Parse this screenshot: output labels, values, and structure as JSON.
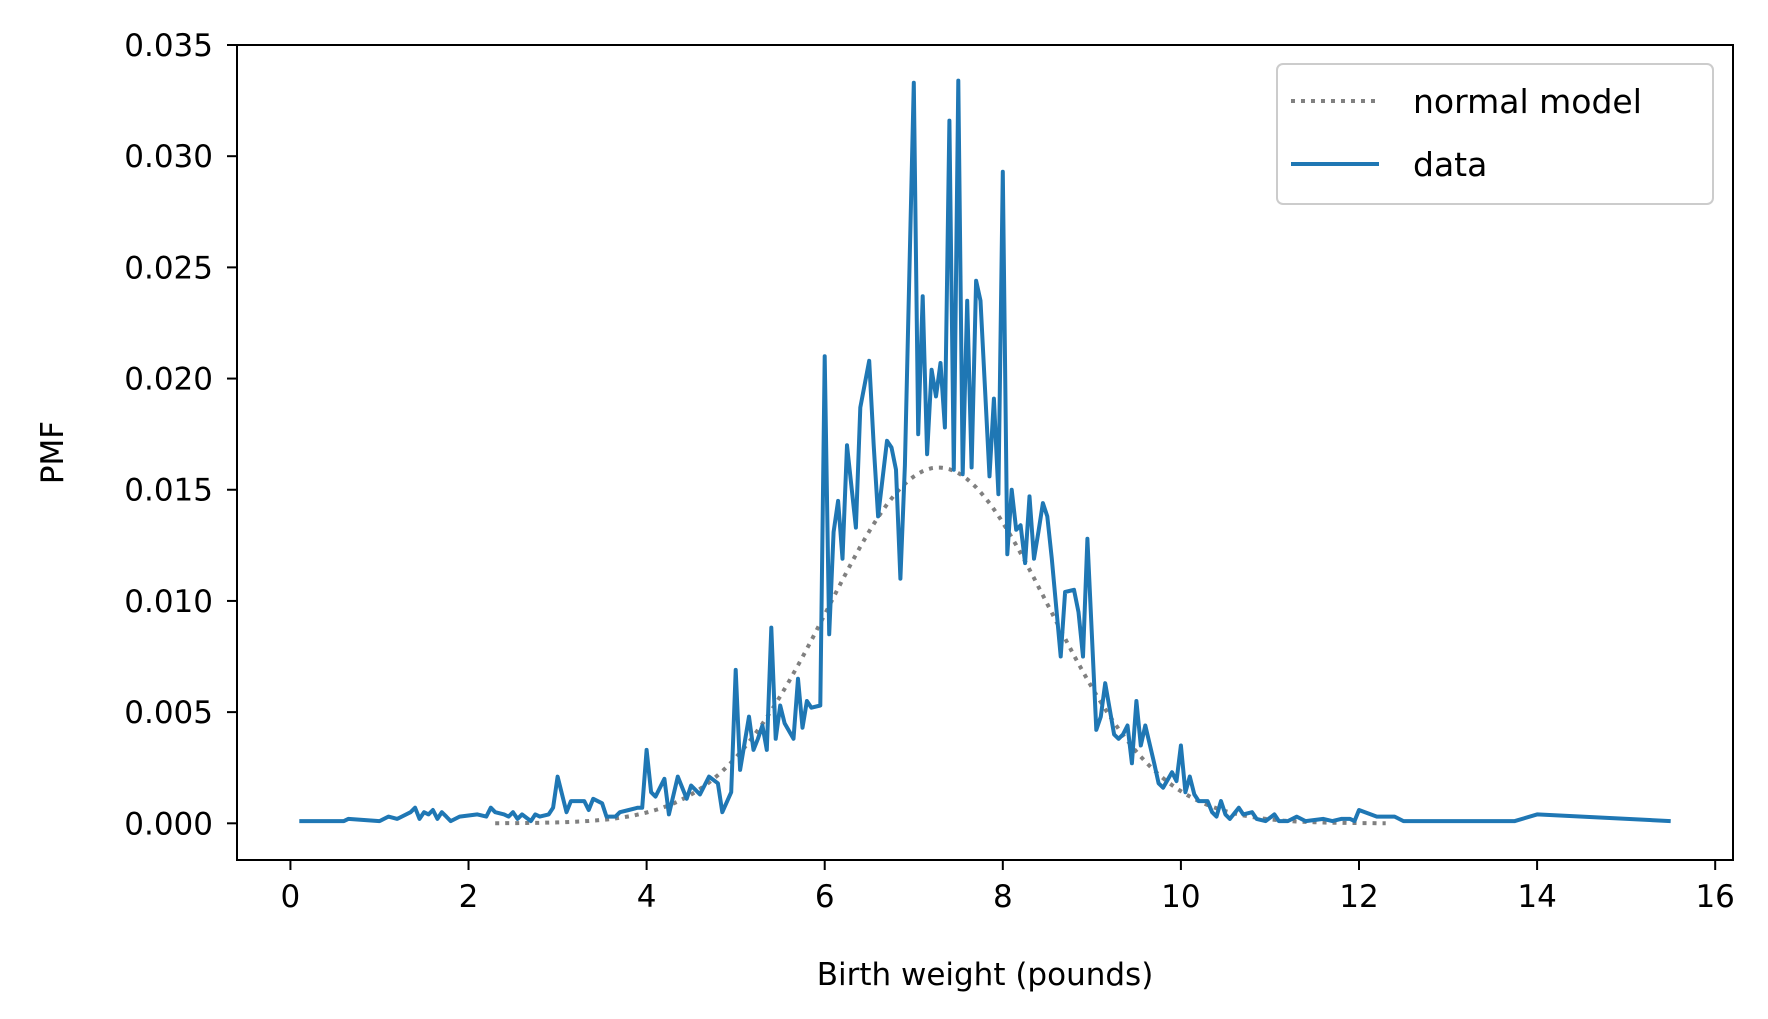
{
  "chart_data": {
    "type": "line",
    "title": "",
    "xlabel": "Birth weight (pounds)",
    "ylabel": "PMF",
    "xlim": [
      -0.6,
      16.2
    ],
    "ylim": [
      -0.00165,
      0.035
    ],
    "xticks": [
      0,
      2,
      4,
      6,
      8,
      10,
      12,
      14,
      16
    ],
    "xtick_labels": [
      "0",
      "2",
      "4",
      "6",
      "8",
      "10",
      "12",
      "14",
      "16"
    ],
    "yticks": [
      0.0,
      0.005,
      0.01,
      0.015,
      0.02,
      0.025,
      0.03,
      0.035
    ],
    "ytick_labels": [
      "0.000",
      "0.005",
      "0.010",
      "0.015",
      "0.020",
      "0.025",
      "0.030",
      "0.035"
    ],
    "grid": false,
    "legend_position": "top-right",
    "series": [
      {
        "name": "normal model",
        "style": "dotted",
        "color": "#808080",
        "kind": "normal-curve",
        "mean": 7.28,
        "sd": 1.24,
        "peak": 0.016,
        "x_range": [
          2.3,
          12.3
        ]
      },
      {
        "name": "data",
        "style": "solid",
        "color": "#1f77b4",
        "points": [
          [
            0.1,
            0.0001
          ],
          [
            0.6,
            0.0001
          ],
          [
            0.65,
            0.0002
          ],
          [
            1.0,
            0.0001
          ],
          [
            1.1,
            0.0003
          ],
          [
            1.2,
            0.0002
          ],
          [
            1.35,
            0.0005
          ],
          [
            1.4,
            0.0007
          ],
          [
            1.45,
            0.0002
          ],
          [
            1.5,
            0.0005
          ],
          [
            1.55,
            0.0004
          ],
          [
            1.6,
            0.0006
          ],
          [
            1.65,
            0.0002
          ],
          [
            1.7,
            0.0005
          ],
          [
            1.75,
            0.0003
          ],
          [
            1.8,
            0.0001
          ],
          [
            1.9,
            0.0003
          ],
          [
            2.1,
            0.0004
          ],
          [
            2.2,
            0.0003
          ],
          [
            2.25,
            0.0007
          ],
          [
            2.3,
            0.0005
          ],
          [
            2.4,
            0.0004
          ],
          [
            2.45,
            0.0003
          ],
          [
            2.5,
            0.0005
          ],
          [
            2.55,
            0.0002
          ],
          [
            2.6,
            0.0004
          ],
          [
            2.7,
            0.0001
          ],
          [
            2.75,
            0.0004
          ],
          [
            2.8,
            0.0003
          ],
          [
            2.9,
            0.0004
          ],
          [
            2.95,
            0.0007
          ],
          [
            3.0,
            0.0021
          ],
          [
            3.1,
            0.0005
          ],
          [
            3.15,
            0.001
          ],
          [
            3.3,
            0.001
          ],
          [
            3.35,
            0.0006
          ],
          [
            3.4,
            0.0011
          ],
          [
            3.5,
            0.0009
          ],
          [
            3.55,
            0.0003
          ],
          [
            3.65,
            0.0003
          ],
          [
            3.7,
            0.0005
          ],
          [
            3.8,
            0.0006
          ],
          [
            3.9,
            0.0007
          ],
          [
            3.95,
            0.0007
          ],
          [
            4.0,
            0.0033
          ],
          [
            4.05,
            0.0014
          ],
          [
            4.1,
            0.0012
          ],
          [
            4.2,
            0.002
          ],
          [
            4.25,
            0.0004
          ],
          [
            4.35,
            0.0021
          ],
          [
            4.45,
            0.0011
          ],
          [
            4.5,
            0.0017
          ],
          [
            4.6,
            0.0013
          ],
          [
            4.7,
            0.0021
          ],
          [
            4.8,
            0.0018
          ],
          [
            4.85,
            0.0005
          ],
          [
            4.95,
            0.0014
          ],
          [
            5.0,
            0.0069
          ],
          [
            5.05,
            0.0024
          ],
          [
            5.15,
            0.0048
          ],
          [
            5.2,
            0.0033
          ],
          [
            5.25,
            0.0038
          ],
          [
            5.3,
            0.0044
          ],
          [
            5.35,
            0.0033
          ],
          [
            5.4,
            0.0088
          ],
          [
            5.45,
            0.0038
          ],
          [
            5.5,
            0.0053
          ],
          [
            5.55,
            0.0045
          ],
          [
            5.65,
            0.0038
          ],
          [
            5.7,
            0.0065
          ],
          [
            5.75,
            0.0043
          ],
          [
            5.8,
            0.0055
          ],
          [
            5.85,
            0.0052
          ],
          [
            5.95,
            0.0053
          ],
          [
            6.0,
            0.021
          ],
          [
            6.05,
            0.0085
          ],
          [
            6.1,
            0.0131
          ],
          [
            6.15,
            0.0145
          ],
          [
            6.2,
            0.0119
          ],
          [
            6.25,
            0.017
          ],
          [
            6.35,
            0.0133
          ],
          [
            6.4,
            0.0187
          ],
          [
            6.5,
            0.0208
          ],
          [
            6.55,
            0.017
          ],
          [
            6.6,
            0.0138
          ],
          [
            6.7,
            0.0172
          ],
          [
            6.75,
            0.0169
          ],
          [
            6.8,
            0.0159
          ],
          [
            6.85,
            0.011
          ],
          [
            6.9,
            0.0161
          ],
          [
            7.0,
            0.0333
          ],
          [
            7.05,
            0.0175
          ],
          [
            7.1,
            0.0237
          ],
          [
            7.15,
            0.0166
          ],
          [
            7.2,
            0.0204
          ],
          [
            7.25,
            0.0192
          ],
          [
            7.3,
            0.0207
          ],
          [
            7.35,
            0.0178
          ],
          [
            7.4,
            0.0316
          ],
          [
            7.45,
            0.0159
          ],
          [
            7.5,
            0.0334
          ],
          [
            7.55,
            0.0157
          ],
          [
            7.6,
            0.0235
          ],
          [
            7.65,
            0.016
          ],
          [
            7.7,
            0.0244
          ],
          [
            7.75,
            0.0235
          ],
          [
            7.85,
            0.0156
          ],
          [
            7.9,
            0.0191
          ],
          [
            7.95,
            0.0148
          ],
          [
            8.0,
            0.0293
          ],
          [
            8.05,
            0.0121
          ],
          [
            8.1,
            0.015
          ],
          [
            8.15,
            0.0132
          ],
          [
            8.2,
            0.0134
          ],
          [
            8.25,
            0.0117
          ],
          [
            8.3,
            0.0147
          ],
          [
            8.35,
            0.0119
          ],
          [
            8.4,
            0.0131
          ],
          [
            8.45,
            0.0144
          ],
          [
            8.5,
            0.0138
          ],
          [
            8.55,
            0.0119
          ],
          [
            8.65,
            0.0075
          ],
          [
            8.7,
            0.0104
          ],
          [
            8.8,
            0.0105
          ],
          [
            8.85,
            0.0095
          ],
          [
            8.9,
            0.0075
          ],
          [
            8.95,
            0.0128
          ],
          [
            9.05,
            0.0042
          ],
          [
            9.1,
            0.0048
          ],
          [
            9.15,
            0.0063
          ],
          [
            9.25,
            0.004
          ],
          [
            9.3,
            0.0038
          ],
          [
            9.35,
            0.004
          ],
          [
            9.4,
            0.0044
          ],
          [
            9.45,
            0.0027
          ],
          [
            9.5,
            0.0055
          ],
          [
            9.55,
            0.0035
          ],
          [
            9.6,
            0.0044
          ],
          [
            9.7,
            0.0027
          ],
          [
            9.75,
            0.0018
          ],
          [
            9.8,
            0.0016
          ],
          [
            9.9,
            0.0023
          ],
          [
            9.95,
            0.0019
          ],
          [
            10.0,
            0.0035
          ],
          [
            10.05,
            0.0014
          ],
          [
            10.1,
            0.0021
          ],
          [
            10.15,
            0.0013
          ],
          [
            10.2,
            0.001
          ],
          [
            10.3,
            0.001
          ],
          [
            10.35,
            0.0005
          ],
          [
            10.4,
            0.0003
          ],
          [
            10.45,
            0.001
          ],
          [
            10.5,
            0.0004
          ],
          [
            10.55,
            0.0002
          ],
          [
            10.65,
            0.0007
          ],
          [
            10.7,
            0.0004
          ],
          [
            10.8,
            0.0005
          ],
          [
            10.85,
            0.0002
          ],
          [
            10.95,
            0.0001
          ],
          [
            11.05,
            0.0004
          ],
          [
            11.1,
            0.0001
          ],
          [
            11.2,
            0.0001
          ],
          [
            11.3,
            0.0003
          ],
          [
            11.4,
            0.0001
          ],
          [
            11.6,
            0.0002
          ],
          [
            11.7,
            0.0001
          ],
          [
            11.8,
            0.0002
          ],
          [
            11.9,
            0.0002
          ],
          [
            11.95,
            0.0001
          ],
          [
            12.0,
            0.0006
          ],
          [
            12.2,
            0.0003
          ],
          [
            12.4,
            0.0003
          ],
          [
            12.5,
            0.0001
          ],
          [
            13.0,
            0.0001
          ],
          [
            13.5,
            0.0001
          ],
          [
            13.75,
            0.0001
          ],
          [
            14.0,
            0.0004
          ],
          [
            15.5,
            0.0001
          ]
        ]
      }
    ]
  }
}
